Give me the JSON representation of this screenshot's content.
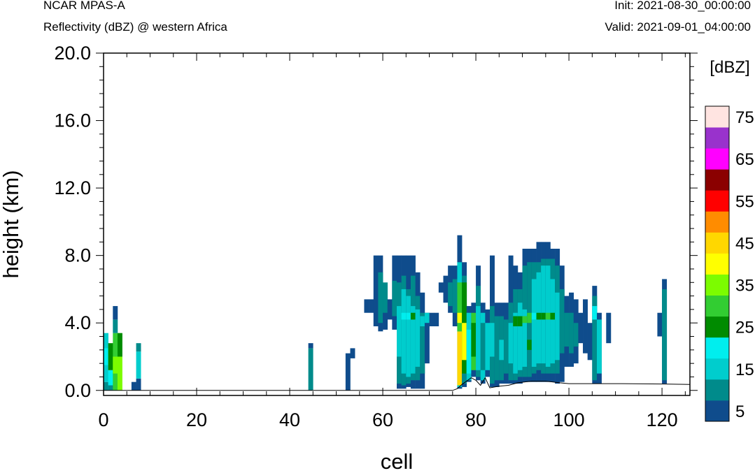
{
  "header": {
    "model": "NCAR MPAS-A",
    "field": "Reflectivity (dBZ) @ western Africa",
    "init": "Init: 2021-08-30_00:00:00",
    "valid": "Valid: 2021-09-01_04:00:00"
  },
  "chart_data": {
    "type": "heatmap",
    "title": "Reflectivity (dBZ) @ western Africa",
    "xlabel": "cell",
    "ylabel": "height (km)",
    "xlim": [
      0,
      126
    ],
    "ylim": [
      -0.3,
      20.0
    ],
    "x_ticks": [
      0,
      20,
      40,
      60,
      80,
      100,
      120
    ],
    "x_tick_labels": [
      "0",
      "20",
      "40",
      "60",
      "80",
      "100",
      "120"
    ],
    "y_ticks": [
      0,
      4,
      8,
      12,
      16,
      20
    ],
    "y_tick_labels": [
      "0.0",
      "4.0",
      "8.0",
      "12.0",
      "16.0",
      "20.0"
    ],
    "colorbar": {
      "unit_label": "[dBZ]",
      "levels": [
        5,
        10,
        15,
        20,
        25,
        30,
        35,
        40,
        45,
        50,
        55,
        60,
        65,
        70,
        75
      ],
      "tick_labels": [
        "5",
        "15",
        "25",
        "35",
        "45",
        "55",
        "65",
        "75"
      ],
      "colors": [
        "#0f4c8c",
        "#008b8b",
        "#00cdcd",
        "#00eeee",
        "#008b00",
        "#32cd32",
        "#7cfc00",
        "#ffff00",
        "#ffd700",
        "#ff8c00",
        "#ff0000",
        "#8b0000",
        "#ff00ff",
        "#9932cc",
        "#ffe4e1"
      ]
    },
    "terrain": [
      [
        0,
        0
      ],
      [
        75,
        0
      ],
      [
        76,
        0.1
      ],
      [
        77,
        0.35
      ],
      [
        78,
        0.55
      ],
      [
        79,
        0.75
      ],
      [
        80,
        0.6
      ],
      [
        81,
        0.3
      ],
      [
        82,
        0.75
      ],
      [
        83,
        0.15
      ],
      [
        85,
        0.25
      ],
      [
        87,
        0.3
      ],
      [
        89,
        0.45
      ],
      [
        92,
        0.55
      ],
      [
        95,
        0.55
      ],
      [
        98,
        0.45
      ],
      [
        100,
        0.4
      ],
      [
        110,
        0.4
      ],
      [
        120,
        0.38
      ],
      [
        126,
        0.35
      ]
    ],
    "columns": [
      {
        "x": 0,
        "cells": [
          [
            0,
            0.5,
            10
          ],
          [
            0.5,
            3.4,
            15
          ],
          [
            1.5,
            2.5,
            20
          ]
        ]
      },
      {
        "x": 1,
        "cells": [
          [
            0,
            1.2,
            20
          ],
          [
            1.2,
            2.8,
            25
          ],
          [
            0,
            0.3,
            10
          ]
        ]
      },
      {
        "x": 2,
        "cells": [
          [
            0,
            3.4,
            30
          ],
          [
            3.4,
            4.2,
            10
          ],
          [
            4.2,
            5.0,
            5
          ],
          [
            1.0,
            2.0,
            35
          ]
        ]
      },
      {
        "x": 3,
        "cells": [
          [
            0,
            2.0,
            35
          ],
          [
            2.0,
            3.4,
            25
          ]
        ]
      },
      {
        "x": 6,
        "cells": [
          [
            0,
            0.5,
            5
          ]
        ]
      },
      {
        "x": 7,
        "cells": [
          [
            0,
            0.7,
            5
          ],
          [
            0.7,
            2.3,
            15
          ],
          [
            2.3,
            2.8,
            10
          ]
        ]
      },
      {
        "x": 44,
        "cells": [
          [
            0,
            2.5,
            10
          ],
          [
            2.5,
            2.8,
            5
          ]
        ]
      },
      {
        "x": 52,
        "cells": [
          [
            0,
            2.2,
            5
          ]
        ]
      },
      {
        "x": 53,
        "cells": [
          [
            1.9,
            2.5,
            5
          ]
        ]
      },
      {
        "x": 56,
        "cells": [
          [
            4.6,
            5.4,
            5
          ]
        ]
      },
      {
        "x": 57,
        "cells": [
          [
            4.6,
            5.4,
            5
          ]
        ]
      },
      {
        "x": 58,
        "cells": [
          [
            3.8,
            8.0,
            5
          ]
        ]
      },
      {
        "x": 59,
        "cells": [
          [
            3.5,
            8.0,
            5
          ],
          [
            4.0,
            7.0,
            10
          ]
        ]
      },
      {
        "x": 60,
        "cells": [
          [
            3.6,
            5.4,
            5
          ],
          [
            4.6,
            6.4,
            10
          ]
        ]
      },
      {
        "x": 61,
        "cells": [
          [
            4.2,
            5.4,
            5
          ]
        ]
      },
      {
        "x": 62,
        "cells": [
          [
            3.6,
            8.0,
            5
          ],
          [
            4.4,
            6.5,
            10
          ]
        ]
      },
      {
        "x": 63,
        "cells": [
          [
            0.1,
            8.0,
            5
          ],
          [
            0.4,
            6.4,
            10
          ],
          [
            2.0,
            5.0,
            15
          ]
        ]
      },
      {
        "x": 64,
        "cells": [
          [
            0.1,
            8.0,
            5
          ],
          [
            0.3,
            6.8,
            10
          ],
          [
            1.0,
            6.0,
            15
          ],
          [
            4.2,
            4.6,
            20
          ]
        ]
      },
      {
        "x": 65,
        "cells": [
          [
            0.2,
            8.0,
            5
          ],
          [
            0.4,
            6.0,
            10
          ],
          [
            0.8,
            5.6,
            15
          ],
          [
            4.2,
            4.6,
            20
          ]
        ]
      },
      {
        "x": 66,
        "cells": [
          [
            0.1,
            8.0,
            5
          ],
          [
            0.6,
            6.8,
            10
          ],
          [
            1.0,
            5.0,
            15
          ],
          [
            4.2,
            4.6,
            25
          ]
        ]
      },
      {
        "x": 67,
        "cells": [
          [
            0.1,
            7.0,
            5
          ],
          [
            0.6,
            5.6,
            10
          ],
          [
            1.4,
            4.8,
            15
          ]
        ]
      },
      {
        "x": 68,
        "cells": [
          [
            0.1,
            5.8,
            5
          ],
          [
            1.0,
            4.6,
            10
          ],
          [
            3.8,
            4.4,
            15
          ]
        ]
      },
      {
        "x": 69,
        "cells": [
          [
            1.6,
            4.6,
            5
          ],
          [
            4.0,
            4.6,
            15
          ]
        ]
      },
      {
        "x": 70,
        "cells": [
          [
            3.8,
            4.6,
            5
          ]
        ]
      },
      {
        "x": 71,
        "cells": [
          [
            3.8,
            4.6,
            5
          ]
        ]
      },
      {
        "x": 72,
        "cells": [
          [
            5.8,
            6.4,
            5
          ]
        ]
      },
      {
        "x": 73,
        "cells": [
          [
            5.2,
            6.8,
            5
          ]
        ]
      },
      {
        "x": 74,
        "cells": [
          [
            4.6,
            7.4,
            5
          ],
          [
            5.0,
            6.4,
            10
          ]
        ]
      },
      {
        "x": 75,
        "cells": [
          [
            3.8,
            7.4,
            5
          ],
          [
            4.6,
            6.6,
            10
          ]
        ]
      },
      {
        "x": 76,
        "cells": [
          [
            0.1,
            9.2,
            5
          ],
          [
            0.2,
            7.6,
            15
          ],
          [
            0.3,
            3.5,
            45
          ],
          [
            3.5,
            6.4,
            30
          ],
          [
            4.0,
            4.6,
            40
          ]
        ]
      },
      {
        "x": 77,
        "cells": [
          [
            0.2,
            7.6,
            5
          ],
          [
            0.4,
            6.8,
            10
          ],
          [
            1.0,
            6.4,
            25
          ],
          [
            1.8,
            4.0,
            40
          ]
        ]
      },
      {
        "x": 78,
        "cells": [
          [
            0.5,
            5.0,
            5
          ],
          [
            0.6,
            4.6,
            15
          ],
          [
            1.0,
            3.6,
            20
          ]
        ]
      },
      {
        "x": 79,
        "cells": [
          [
            0.8,
            5.2,
            5
          ],
          [
            1.2,
            4.6,
            30
          ],
          [
            2.0,
            4.0,
            25
          ]
        ]
      },
      {
        "x": 80,
        "cells": [
          [
            0.6,
            7.4,
            5
          ],
          [
            0.8,
            6.2,
            10
          ],
          [
            1.2,
            5.0,
            15
          ]
        ]
      },
      {
        "x": 81,
        "cells": [
          [
            0.4,
            5.2,
            5
          ],
          [
            0.6,
            4.6,
            15
          ],
          [
            1.2,
            4.0,
            10
          ]
        ]
      },
      {
        "x": 82,
        "cells": [
          [
            0.8,
            4.8,
            5
          ],
          [
            1.2,
            4.0,
            15
          ]
        ]
      },
      {
        "x": 83,
        "cells": [
          [
            0.2,
            8.0,
            5
          ],
          [
            0.4,
            5.0,
            10
          ],
          [
            2.0,
            4.0,
            15
          ]
        ]
      },
      {
        "x": 84,
        "cells": [
          [
            0.2,
            5.2,
            5
          ],
          [
            0.6,
            4.4,
            10
          ]
        ]
      },
      {
        "x": 85,
        "cells": [
          [
            0.4,
            5.2,
            5
          ],
          [
            0.6,
            4.4,
            10
          ],
          [
            1.8,
            3.0,
            15
          ]
        ]
      },
      {
        "x": 86,
        "cells": [
          [
            0.4,
            5.2,
            5
          ],
          [
            1.0,
            4.2,
            10
          ]
        ]
      },
      {
        "x": 87,
        "cells": [
          [
            0.4,
            8.0,
            5
          ],
          [
            0.6,
            5.2,
            10
          ],
          [
            1.6,
            4.0,
            15
          ]
        ]
      },
      {
        "x": 88,
        "cells": [
          [
            0.4,
            7.4,
            5
          ],
          [
            0.6,
            6.0,
            10
          ],
          [
            1.0,
            4.6,
            15
          ],
          [
            3.8,
            4.4,
            25
          ]
        ]
      },
      {
        "x": 89,
        "cells": [
          [
            0.4,
            7.0,
            5
          ],
          [
            0.8,
            6.0,
            10
          ],
          [
            1.2,
            5.2,
            15
          ],
          [
            3.8,
            4.4,
            25
          ]
        ]
      },
      {
        "x": 90,
        "cells": [
          [
            0.5,
            8.4,
            5
          ],
          [
            0.8,
            7.4,
            10
          ],
          [
            1.4,
            4.8,
            15
          ],
          [
            4.0,
            4.4,
            30
          ]
        ]
      },
      {
        "x": 91,
        "cells": [
          [
            0.5,
            8.4,
            5
          ],
          [
            0.8,
            7.6,
            10
          ],
          [
            1.6,
            4.0,
            10
          ],
          [
            4.0,
            4.6,
            30
          ],
          [
            2.4,
            3.0,
            25
          ]
        ]
      },
      {
        "x": 92,
        "cells": [
          [
            0.5,
            8.4,
            5
          ],
          [
            1.0,
            7.6,
            10
          ],
          [
            1.4,
            6.6,
            15
          ],
          [
            4.2,
            4.6,
            20
          ]
        ]
      },
      {
        "x": 93,
        "cells": [
          [
            0.5,
            8.8,
            5
          ],
          [
            1.2,
            7.6,
            10
          ],
          [
            1.6,
            7.0,
            15
          ],
          [
            4.2,
            4.6,
            25
          ]
        ]
      },
      {
        "x": 94,
        "cells": [
          [
            0.5,
            8.8,
            5
          ],
          [
            1.0,
            7.8,
            10
          ],
          [
            1.6,
            7.4,
            15
          ],
          [
            4.2,
            4.6,
            25
          ]
        ]
      },
      {
        "x": 95,
        "cells": [
          [
            0.5,
            8.8,
            5
          ],
          [
            1.0,
            7.8,
            10
          ],
          [
            1.4,
            7.4,
            15
          ],
          [
            4.2,
            4.6,
            30
          ]
        ]
      },
      {
        "x": 96,
        "cells": [
          [
            0.5,
            8.4,
            5
          ],
          [
            1.0,
            7.8,
            10
          ],
          [
            1.6,
            6.6,
            15
          ],
          [
            4.2,
            4.6,
            25
          ]
        ]
      },
      {
        "x": 97,
        "cells": [
          [
            0.4,
            8.4,
            5
          ],
          [
            1.0,
            7.4,
            10
          ],
          [
            1.8,
            5.8,
            15
          ]
        ]
      },
      {
        "x": 98,
        "cells": [
          [
            0.5,
            7.4,
            5
          ],
          [
            2.2,
            6.0,
            10
          ]
        ]
      },
      {
        "x": 99,
        "cells": [
          [
            1.4,
            5.6,
            5
          ],
          [
            2.6,
            4.6,
            10
          ]
        ]
      },
      {
        "x": 100,
        "cells": [
          [
            1.4,
            5.8,
            5
          ],
          [
            2.2,
            4.6,
            10
          ]
        ]
      },
      {
        "x": 101,
        "cells": [
          [
            1.6,
            5.4,
            5
          ],
          [
            2.6,
            4.0,
            10
          ]
        ]
      },
      {
        "x": 102,
        "cells": [
          [
            2.8,
            4.6,
            5
          ]
        ]
      },
      {
        "x": 103,
        "cells": [
          [
            2.2,
            5.4,
            5
          ]
        ]
      },
      {
        "x": 104,
        "cells": [
          [
            1.8,
            4.0,
            5
          ]
        ]
      },
      {
        "x": 105,
        "cells": [
          [
            0.4,
            6.2,
            5
          ],
          [
            0.6,
            5.6,
            10
          ],
          [
            4.2,
            5.0,
            20
          ]
        ]
      },
      {
        "x": 106,
        "cells": [
          [
            0.4,
            4.6,
            5
          ],
          [
            1.0,
            4.2,
            15
          ]
        ]
      },
      {
        "x": 108,
        "cells": [
          [
            2.8,
            4.6,
            5
          ]
        ]
      },
      {
        "x": 119,
        "cells": [
          [
            3.2,
            4.6,
            5
          ]
        ]
      },
      {
        "x": 120,
        "cells": [
          [
            0.4,
            6.6,
            5
          ],
          [
            0.6,
            6.0,
            10
          ]
        ]
      }
    ]
  }
}
